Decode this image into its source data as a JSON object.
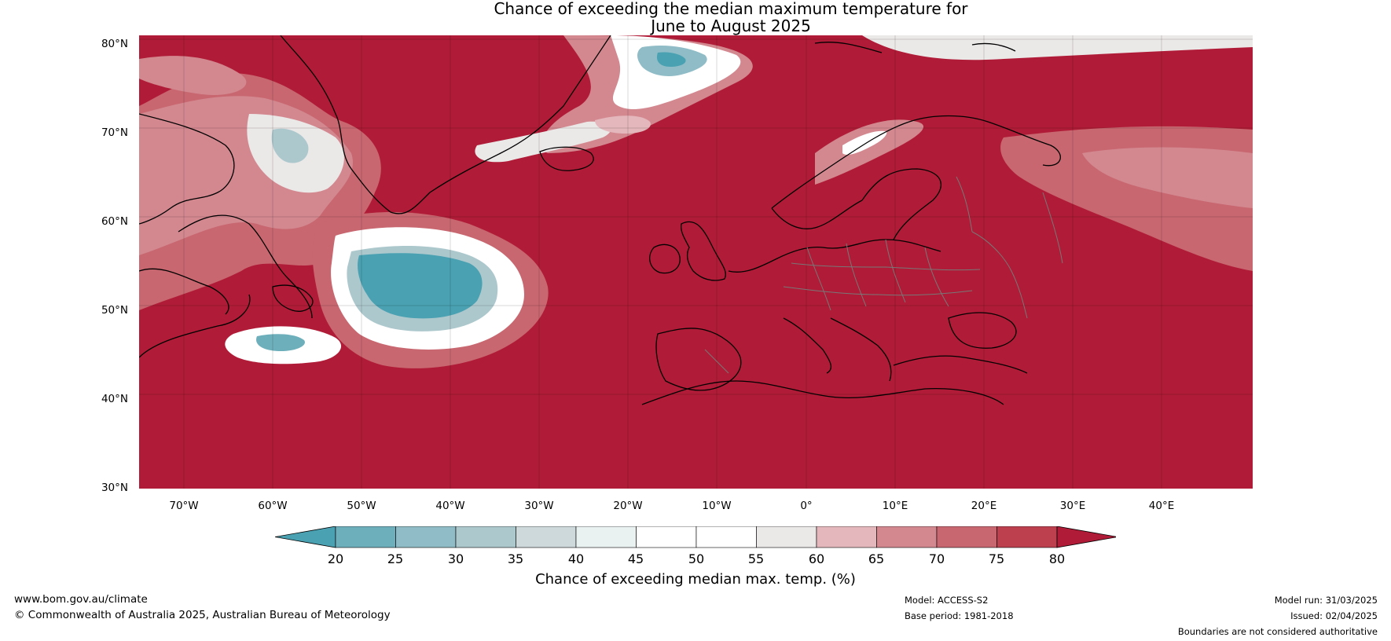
{
  "title": {
    "line1": "Chance of exceeding the median maximum temperature for",
    "line2": "June to August 2025"
  },
  "map": {
    "lat_labels": [
      "80°N",
      "70°N",
      "60°N",
      "50°N",
      "40°N",
      "30°N"
    ],
    "lon_labels": [
      "70°W",
      "60°W",
      "50°W",
      "40°W",
      "30°W",
      "20°W",
      "10°W",
      "0°",
      "10°E",
      "20°E",
      "30°E",
      "40°E"
    ],
    "colors": {
      "dominant": "#b01c37",
      "land_outline": "#000000",
      "border": "#777777"
    }
  },
  "colorbar": {
    "ticks": [
      "20",
      "25",
      "30",
      "35",
      "40",
      "45",
      "50",
      "55",
      "60",
      "65",
      "70",
      "75",
      "80"
    ],
    "colors": [
      "#4aa1b2",
      "#6eafbc",
      "#8fbcc6",
      "#adc8cd",
      "#ced9dc",
      "#eaf1f1",
      "#ffffff",
      "#ffffff",
      "#ebe8e8",
      "#e3b7bb",
      "#d38890",
      "#c86770",
      "#bd404f",
      "#b01c37"
    ],
    "label": "Chance of exceeding median max. temp. (%)"
  },
  "footer": {
    "website": "www.bom.gov.au/climate",
    "copyright": "© Commonwealth of Australia 2025, Australian Bureau of Meteorology",
    "model": "Model: ACCESS-S2",
    "base_period": "Base period: 1981-2018",
    "model_run": "Model run: 31/03/2025",
    "issued": "Issued: 02/04/2025",
    "disclaimer": "Boundaries are not considered authoritative"
  }
}
